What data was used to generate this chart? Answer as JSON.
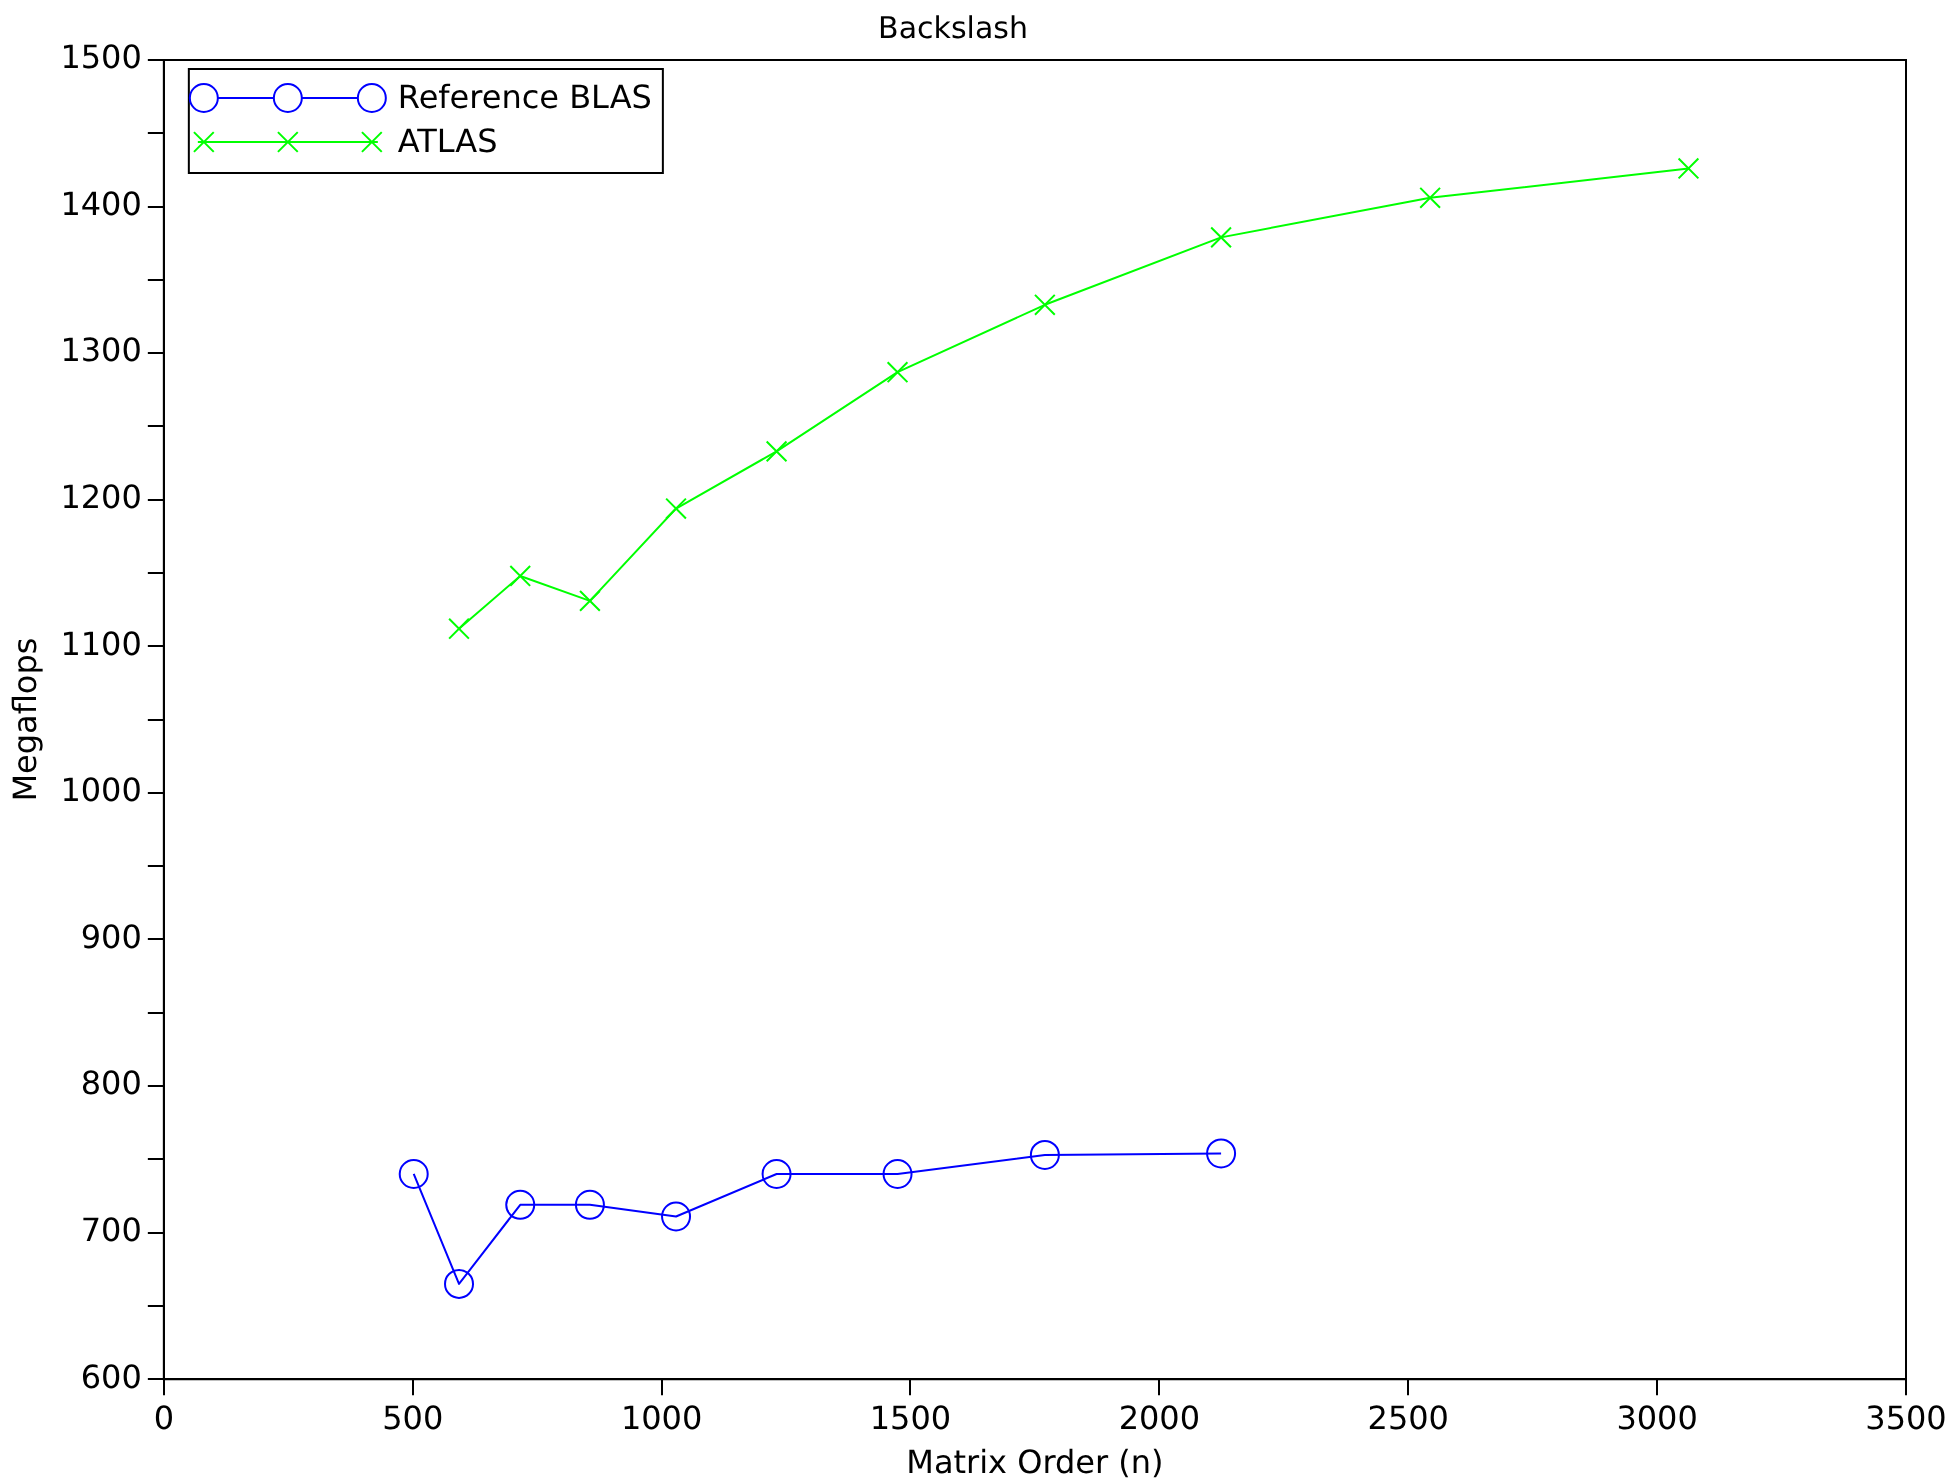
{
  "chart_data": {
    "type": "line",
    "title": "Backslash",
    "xlabel": "Matrix Order (n)",
    "ylabel": "Megaflops",
    "xlim": [
      0,
      3500
    ],
    "xticks": [
      0,
      500,
      1000,
      1500,
      2000,
      2500,
      3000,
      3500
    ],
    "ylim": [
      600,
      1500
    ],
    "yticks": [
      600,
      {
        "value": 650,
        "label": null
      },
      700,
      {
        "value": 750,
        "label": null
      },
      800,
      {
        "value": 850,
        "label": null
      },
      900,
      {
        "value": 950,
        "label": null
      },
      1000,
      {
        "value": 1050,
        "label": null
      },
      1100,
      {
        "value": 1150,
        "label": null
      },
      1200,
      {
        "value": 1250,
        "label": null
      },
      1300,
      {
        "value": 1350,
        "label": null
      },
      1400,
      {
        "value": 1450,
        "label": null
      },
      1500
    ],
    "grid": false,
    "legend": "top left",
    "line_style": "solid",
    "series": [
      {
        "name": "Reference BLAS",
        "color": "#0000ff",
        "marker": "circle",
        "x": [
          502,
          593,
          716,
          856,
          1029,
          1231,
          1474,
          1770,
          2124
        ],
        "values": [
          740,
          665,
          719,
          719,
          711,
          740,
          740,
          753,
          754
        ]
      },
      {
        "name": "ATLAS",
        "color": "#00ff00",
        "marker": "cross",
        "x": [
          593,
          716,
          856,
          1029,
          1231,
          1474,
          1770,
          2124,
          2544,
          3063
        ],
        "values": [
          1112,
          1148,
          1131,
          1194,
          1233,
          1287,
          1333,
          1379,
          1406,
          1426
        ]
      }
    ]
  }
}
